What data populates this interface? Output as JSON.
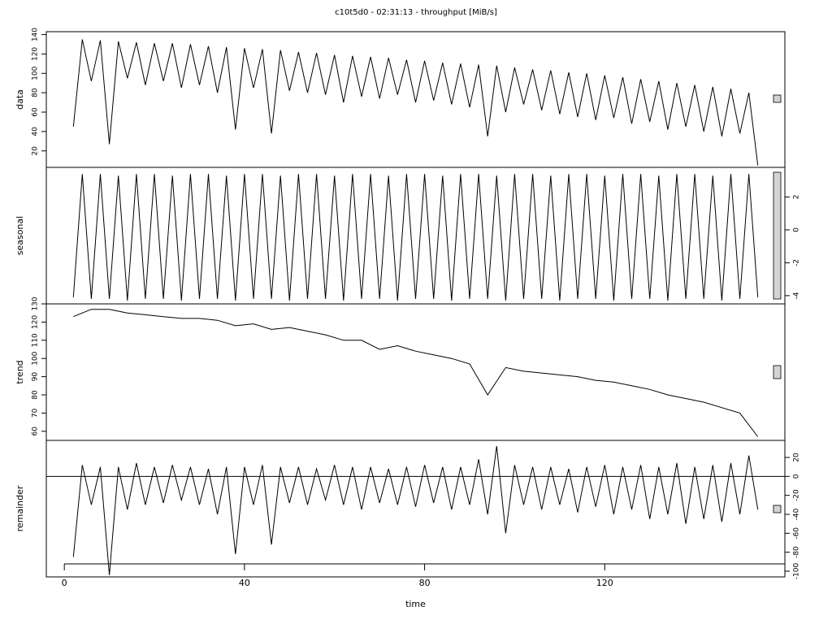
{
  "chart_data": [
    {
      "type": "line",
      "title": "c10t5d0 - 02:31:13 - throughput [MiB/s]",
      "y_label": "data",
      "y_axis_side": "left",
      "color": "#000000",
      "xlim": [
        -4,
        160
      ],
      "ylim": [
        3,
        143
      ],
      "yticks": [
        20,
        40,
        60,
        80,
        100,
        120,
        140
      ],
      "x": [
        2,
        4,
        6,
        8,
        10,
        12,
        14,
        16,
        18,
        20,
        22,
        24,
        26,
        28,
        30,
        32,
        34,
        36,
        38,
        40,
        42,
        44,
        46,
        48,
        50,
        52,
        54,
        56,
        58,
        60,
        62,
        64,
        66,
        68,
        70,
        72,
        74,
        76,
        78,
        80,
        82,
        84,
        86,
        88,
        90,
        92,
        94,
        96,
        98,
        100,
        102,
        104,
        106,
        108,
        110,
        112,
        114,
        116,
        118,
        120,
        122,
        124,
        126,
        128,
        130,
        132,
        134,
        136,
        138,
        140,
        142,
        144,
        146,
        148,
        150,
        152,
        154
      ],
      "values": [
        45,
        135,
        92,
        134,
        27,
        133,
        95,
        132,
        88,
        131,
        92,
        131,
        85,
        130,
        88,
        128,
        80,
        127,
        42,
        126,
        85,
        125,
        38,
        124,
        82,
        122,
        80,
        121,
        78,
        119,
        70,
        118,
        76,
        117,
        74,
        116,
        78,
        114,
        70,
        113,
        72,
        111,
        68,
        110,
        65,
        109,
        35,
        108,
        60,
        106,
        68,
        104,
        62,
        103,
        58,
        101,
        55,
        100,
        52,
        98,
        54,
        96,
        48,
        94,
        50,
        92,
        42,
        90,
        45,
        88,
        40,
        86,
        35,
        84,
        38,
        80,
        5
      ]
    },
    {
      "type": "line",
      "y_label": "seasonal",
      "y_axis_side": "right",
      "color": "#000000",
      "xlim": [
        -4,
        160
      ],
      "ylim": [
        -4.5,
        3.8
      ],
      "yticks": [
        -4,
        -2,
        0,
        2
      ],
      "x": [
        2,
        4,
        6,
        8,
        10,
        12,
        14,
        16,
        18,
        20,
        22,
        24,
        26,
        28,
        30,
        32,
        34,
        36,
        38,
        40,
        42,
        44,
        46,
        48,
        50,
        52,
        54,
        56,
        58,
        60,
        62,
        64,
        66,
        68,
        70,
        72,
        74,
        76,
        78,
        80,
        82,
        84,
        86,
        88,
        90,
        92,
        94,
        96,
        98,
        100,
        102,
        104,
        106,
        108,
        110,
        112,
        114,
        116,
        118,
        120,
        122,
        124,
        126,
        128,
        130,
        132,
        134,
        136,
        138,
        140,
        142,
        144,
        146,
        148,
        150,
        152,
        154
      ],
      "values": [
        -4.1,
        3.4,
        -4.2,
        3.4,
        -4.2,
        3.3,
        -4.3,
        3.4,
        -4.2,
        3.4,
        -4.2,
        3.3,
        -4.3,
        3.4,
        -4.2,
        3.4,
        -4.2,
        3.3,
        -4.3,
        3.4,
        -4.2,
        3.4,
        -4.2,
        3.3,
        -4.3,
        3.4,
        -4.2,
        3.4,
        -4.2,
        3.3,
        -4.3,
        3.4,
        -4.2,
        3.4,
        -4.2,
        3.3,
        -4.3,
        3.4,
        -4.2,
        3.4,
        -4.2,
        3.3,
        -4.3,
        3.4,
        -4.2,
        3.4,
        -4.2,
        3.3,
        -4.3,
        3.4,
        -4.2,
        3.4,
        -4.2,
        3.3,
        -4.3,
        3.4,
        -4.2,
        3.4,
        -4.2,
        3.3,
        -4.3,
        3.4,
        -4.2,
        3.4,
        -4.2,
        3.3,
        -4.3,
        3.4,
        -4.2,
        3.4,
        -4.2,
        3.3,
        -4.3,
        3.4,
        -4.2,
        3.4,
        -4.1
      ]
    },
    {
      "type": "line",
      "y_label": "trend",
      "y_axis_side": "left",
      "color": "#000000",
      "xlim": [
        -4,
        160
      ],
      "ylim": [
        55,
        130
      ],
      "yticks": [
        60,
        70,
        80,
        90,
        100,
        110,
        120,
        130
      ],
      "x": [
        2,
        6,
        10,
        14,
        18,
        22,
        26,
        30,
        34,
        38,
        42,
        46,
        50,
        54,
        58,
        62,
        66,
        70,
        74,
        78,
        82,
        86,
        90,
        94,
        98,
        102,
        106,
        110,
        114,
        118,
        122,
        126,
        130,
        134,
        138,
        142,
        146,
        150,
        154
      ],
      "values": [
        123,
        127,
        127,
        125,
        124,
        123,
        122,
        122,
        121,
        118,
        119,
        116,
        117,
        115,
        113,
        110,
        110,
        105,
        107,
        104,
        102,
        100,
        97,
        80,
        95,
        93,
        92,
        91,
        90,
        88,
        87,
        85,
        83,
        80,
        78,
        76,
        73,
        70,
        57
      ]
    },
    {
      "type": "line",
      "y_label": "remainder",
      "y_axis_side": "right",
      "color": "#000000",
      "zero_line": true,
      "x_label": "time",
      "xlim": [
        -4,
        160
      ],
      "xticks": [
        0,
        40,
        80,
        120
      ],
      "ylim": [
        -106,
        38
      ],
      "yticks": [
        -100,
        -80,
        -60,
        -40,
        -20,
        0,
        20
      ],
      "x": [
        2,
        4,
        6,
        8,
        10,
        12,
        14,
        16,
        18,
        20,
        22,
        24,
        26,
        28,
        30,
        32,
        34,
        36,
        38,
        40,
        42,
        44,
        46,
        48,
        50,
        52,
        54,
        56,
        58,
        60,
        62,
        64,
        66,
        68,
        70,
        72,
        74,
        76,
        78,
        80,
        82,
        84,
        86,
        88,
        90,
        92,
        94,
        96,
        98,
        100,
        102,
        104,
        106,
        108,
        110,
        112,
        114,
        116,
        118,
        120,
        122,
        124,
        126,
        128,
        130,
        132,
        134,
        136,
        138,
        140,
        142,
        144,
        146,
        148,
        150,
        152,
        154
      ],
      "values": [
        -85,
        12,
        -30,
        10,
        -104,
        10,
        -35,
        14,
        -30,
        10,
        -28,
        12,
        -25,
        10,
        -30,
        8,
        -40,
        10,
        -82,
        10,
        -30,
        12,
        -72,
        10,
        -28,
        10,
        -30,
        8,
        -25,
        12,
        -30,
        10,
        -35,
        10,
        -28,
        8,
        -30,
        10,
        -32,
        12,
        -28,
        10,
        -35,
        10,
        -30,
        18,
        -40,
        32,
        -60,
        12,
        -30,
        10,
        -35,
        10,
        -30,
        8,
        -38,
        10,
        -32,
        12,
        -40,
        10,
        -35,
        12,
        -45,
        10,
        -40,
        14,
        -50,
        10,
        -45,
        12,
        -48,
        14,
        -40,
        22,
        -35
      ]
    }
  ]
}
